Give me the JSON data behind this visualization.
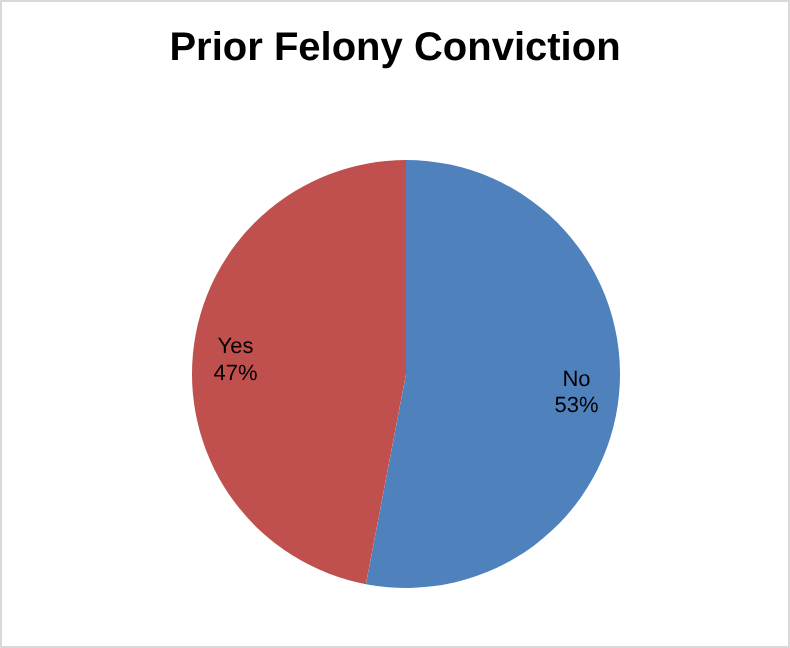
{
  "chart_data": {
    "type": "pie",
    "title": "Prior Felony Conviction",
    "categories": [
      "No",
      "Yes"
    ],
    "values": [
      53,
      47
    ],
    "colors": [
      "#4f81bd",
      "#c0504d"
    ],
    "value_labels": [
      "53%",
      "47%"
    ],
    "legend": false
  }
}
